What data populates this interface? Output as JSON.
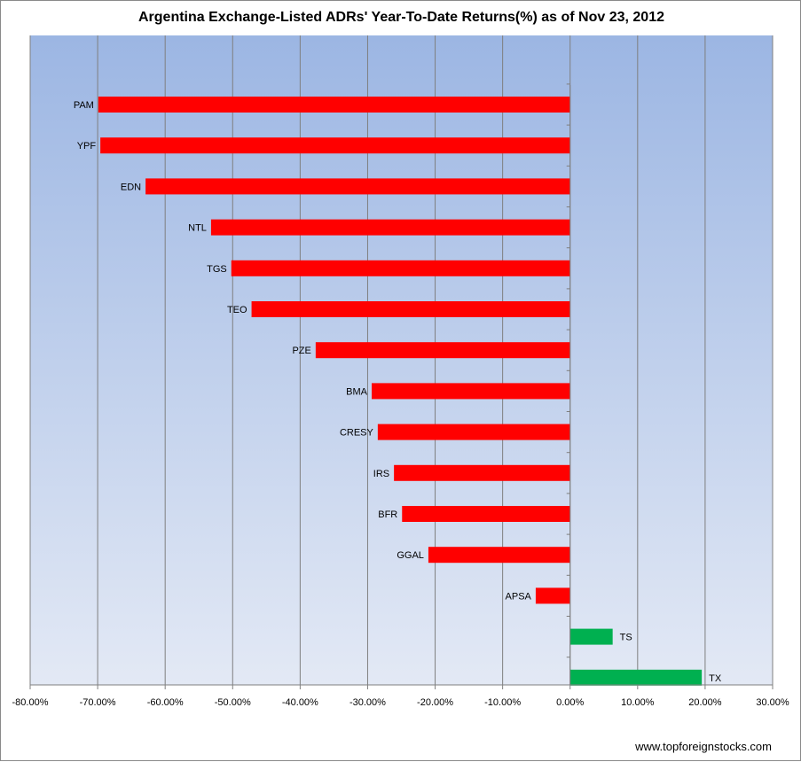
{
  "chart_data": {
    "type": "bar",
    "orientation": "horizontal",
    "title": "Argentina Exchange-Listed ADRs' Year-To-Date Returns(%) as of Nov 23, 2012",
    "source": "www.topforeignstocks.com",
    "categories": [
      "PAM",
      "YPF",
      "EDN",
      "NTL",
      "TGS",
      "TEO",
      "PZE",
      "BMA",
      "CRESY",
      "IRS",
      "BFR",
      "GGAL",
      "APSA",
      "TS",
      "TX"
    ],
    "values": [
      -69.9,
      -69.6,
      -62.9,
      -53.2,
      -50.2,
      -47.2,
      -37.7,
      -29.4,
      -28.5,
      -26.1,
      -24.9,
      -21.0,
      -5.1,
      6.3,
      19.5
    ],
    "xlim": [
      -80,
      30
    ],
    "xticks": [
      -80,
      -70,
      -60,
      -50,
      -40,
      -30,
      -20,
      -10,
      0,
      10,
      20,
      30
    ],
    "tick_labels": [
      "-80.00%",
      "-70.00%",
      "-60.00%",
      "-50.00%",
      "-40.00%",
      "-30.00%",
      "-20.00%",
      "-10.00%",
      "0.00%",
      "10.00%",
      "20.00%",
      "30.00%"
    ],
    "grid": "vertical",
    "colors": {
      "negative": "#ff0000",
      "positive": "#00b050",
      "background_top": "#9cb6e3",
      "background_bottom": "#e3e9f5",
      "gridline": "#7f7f7f"
    }
  }
}
